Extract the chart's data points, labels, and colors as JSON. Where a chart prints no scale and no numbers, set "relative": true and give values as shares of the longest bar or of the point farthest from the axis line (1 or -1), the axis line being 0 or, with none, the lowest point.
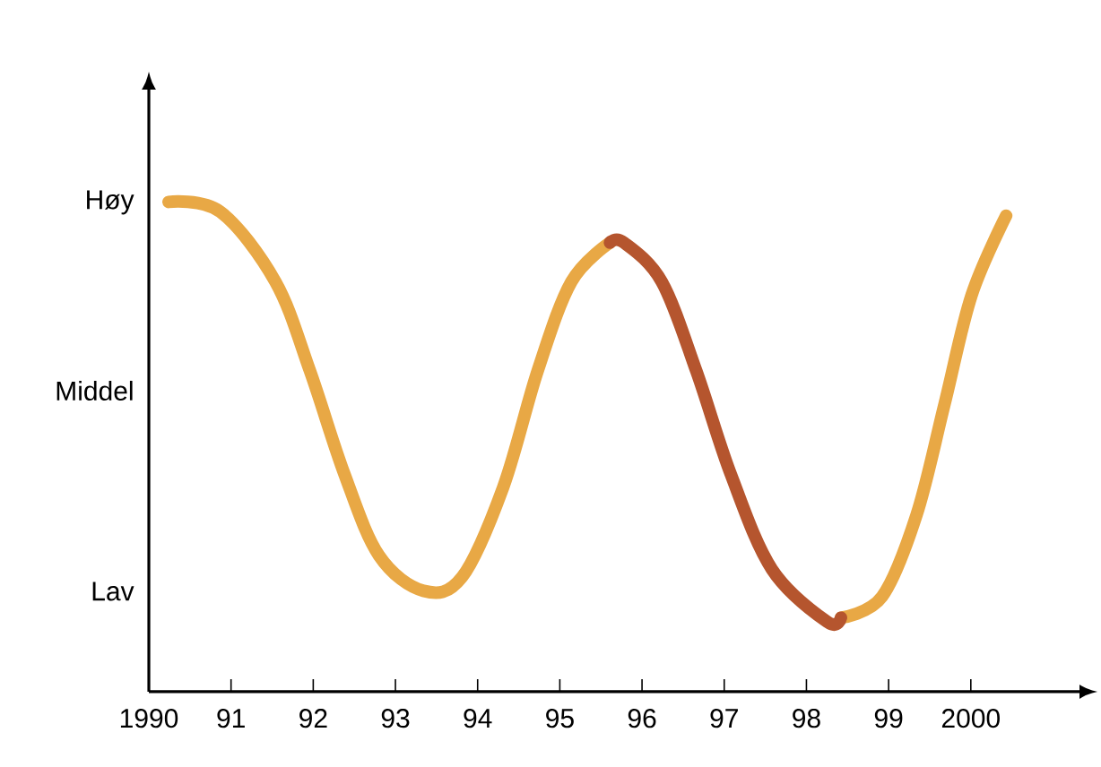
{
  "chart_data": {
    "type": "line",
    "relative": true,
    "xlim": [
      1990,
      2001.3
    ],
    "xticks": [
      1990,
      {
        "value": 1991,
        "label": "91"
      },
      {
        "value": 1992,
        "label": "92"
      },
      {
        "value": 1993,
        "label": "93"
      },
      {
        "value": 1994,
        "label": "94"
      },
      {
        "value": 1995,
        "label": "95"
      },
      {
        "value": 1996,
        "label": "96"
      },
      {
        "value": 1997,
        "label": "97"
      },
      {
        "value": 1998,
        "label": "98"
      },
      {
        "value": 1999,
        "label": "99"
      },
      2000
    ],
    "annotations": [
      "Høy",
      "Middel",
      "Lav"
    ],
    "series": [
      {
        "color": "#e8a845",
        "x": [
          1990.24,
          1990.87,
          1991.54,
          1991.96,
          1992.38,
          1992.8,
          1993.34,
          1993.81,
          1994.31,
          1994.73,
          1995.14,
          1995.61,
          1997,
          1998.42,
          1998.92,
          1999.34,
          1999.68,
          2000.01,
          2000.43
        ],
        "values": [
          1.0,
          0.98,
          0.837,
          0.655,
          0.444,
          0.278,
          0.206,
          0.234,
          0.417,
          0.655,
          0.837,
          0.917,
          null,
          0.151,
          0.194,
          0.361,
          0.587,
          0.81,
          0.972
        ]
      },
      {
        "color": "#b5552e",
        "x": [
          1995.61,
          1995.78,
          1996.24,
          1996.66,
          1997.08,
          1997.58,
          1998.25,
          1998.42
        ],
        "values": [
          0.917,
          0.917,
          0.837,
          0.655,
          0.444,
          0.25,
          0.143,
          0.151
        ]
      }
    ]
  }
}
